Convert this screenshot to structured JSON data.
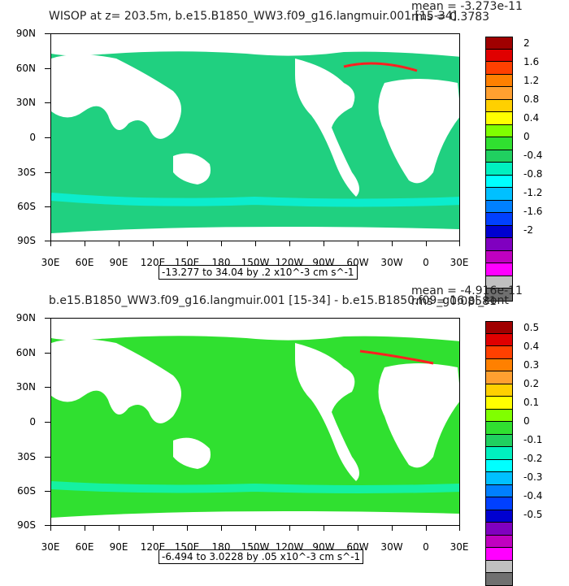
{
  "chart_data": [
    {
      "type": "heatmap",
      "title": "WISOP at z= 203.5m, b.e15.B1850_WW3.f09_g16.langmuir.001 [15-34]",
      "mean_label": "mean = -3.273e-11",
      "rms_label": "rms = 0.3783",
      "y_ticks": [
        "90N",
        "60N",
        "30N",
        "0",
        "30S",
        "60S",
        "90S"
      ],
      "x_ticks": [
        "30E",
        "60E",
        "90E",
        "120E",
        "150E",
        "180",
        "150W",
        "120W",
        "90W",
        "60W",
        "30W",
        "0",
        "30E"
      ],
      "range_label": "-13.277 to 34.04 by .2 x10^-3 cm s^-1",
      "colorbar_labels": [
        "2",
        "1.6",
        "1.2",
        "0.8",
        "0.4",
        "0",
        "-0.4",
        "-0.8",
        "-1.2",
        "-1.6",
        "-2"
      ],
      "colorbar_colors": [
        "#a00000",
        "#e00000",
        "#ff4000",
        "#ff8000",
        "#ffa030",
        "#ffd000",
        "#ffff00",
        "#80ff00",
        "#30e030",
        "#20d060",
        "#00f0c0",
        "#00ffff",
        "#00c0ff",
        "#0080ff",
        "#0040ff",
        "#0000d0",
        "#8000c0",
        "#c000c0",
        "#ff00ff",
        "#c0c0c0",
        "#707070"
      ]
    },
    {
      "type": "heatmap",
      "title": "b.e15.B1850_WW3.f09_g16.langmuir.001 [15-34] - b.e15.B1850.f09_g16.pi_cont",
      "mean_label": "mean = -4.916e-11",
      "rms_label": "rms = 0.08581",
      "y_ticks": [
        "90N",
        "60N",
        "30N",
        "0",
        "30S",
        "60S",
        "90S"
      ],
      "x_ticks": [
        "30E",
        "60E",
        "90E",
        "120E",
        "150E",
        "180",
        "150W",
        "120W",
        "90W",
        "60W",
        "30W",
        "0",
        "30E"
      ],
      "range_label": "-6.494 to 3.0228 by .05 x10^-3 cm s^-1",
      "colorbar_labels": [
        "0.5",
        "0.4",
        "0.3",
        "0.2",
        "0.1",
        "0",
        "-0.1",
        "-0.2",
        "-0.3",
        "-0.4",
        "-0.5"
      ],
      "colorbar_colors": [
        "#a00000",
        "#e00000",
        "#ff4000",
        "#ff8000",
        "#ffa030",
        "#ffd000",
        "#ffff00",
        "#80ff00",
        "#30e030",
        "#20d060",
        "#00f0c0",
        "#00ffff",
        "#00c0ff",
        "#0080ff",
        "#0040ff",
        "#0000d0",
        "#8000c0",
        "#c000c0",
        "#ff00ff",
        "#c0c0c0",
        "#707070"
      ]
    }
  ]
}
